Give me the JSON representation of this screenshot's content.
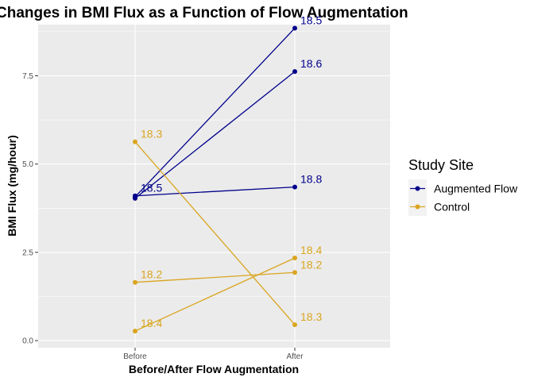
{
  "chart_data": {
    "type": "line",
    "title": "Changes in BMI Flux as a Function of Flow Augmentation",
    "xlabel": "Before/After Flow Augmentation",
    "ylabel": "BMI Flux (mg/hour)",
    "categories": [
      "Before",
      "After"
    ],
    "ylim": [
      -0.2,
      8.95
    ],
    "yticks": [
      0.0,
      2.5,
      5.0,
      7.5
    ],
    "ytick_labels": [
      "0.0",
      "2.5",
      "5.0",
      "7.5"
    ],
    "grid": true,
    "legend": {
      "title": "Study Site",
      "position": "right",
      "entries": [
        {
          "label": "Augmented Flow",
          "color": "#00008b"
        },
        {
          "label": "Control",
          "color": "#daa520"
        }
      ]
    },
    "lines": [
      {
        "group": "Augmented Flow",
        "values": [
          4.07,
          8.85
        ],
        "labels": [
          "",
          "18.5"
        ]
      },
      {
        "group": "Augmented Flow",
        "values": [
          4.03,
          7.62
        ],
        "labels": [
          "",
          "18.6"
        ]
      },
      {
        "group": "Augmented Flow",
        "values": [
          4.1,
          4.35
        ],
        "labels": [
          "18.5",
          "18.8"
        ]
      },
      {
        "group": "Control",
        "values": [
          5.63,
          0.45
        ],
        "labels": [
          "18.3",
          "18.3"
        ]
      },
      {
        "group": "Control",
        "values": [
          1.65,
          1.93
        ],
        "labels": [
          "18.2",
          "18.2"
        ]
      },
      {
        "group": "Control",
        "values": [
          0.27,
          2.34
        ],
        "labels": [
          "18.4",
          "18.4"
        ]
      }
    ]
  }
}
